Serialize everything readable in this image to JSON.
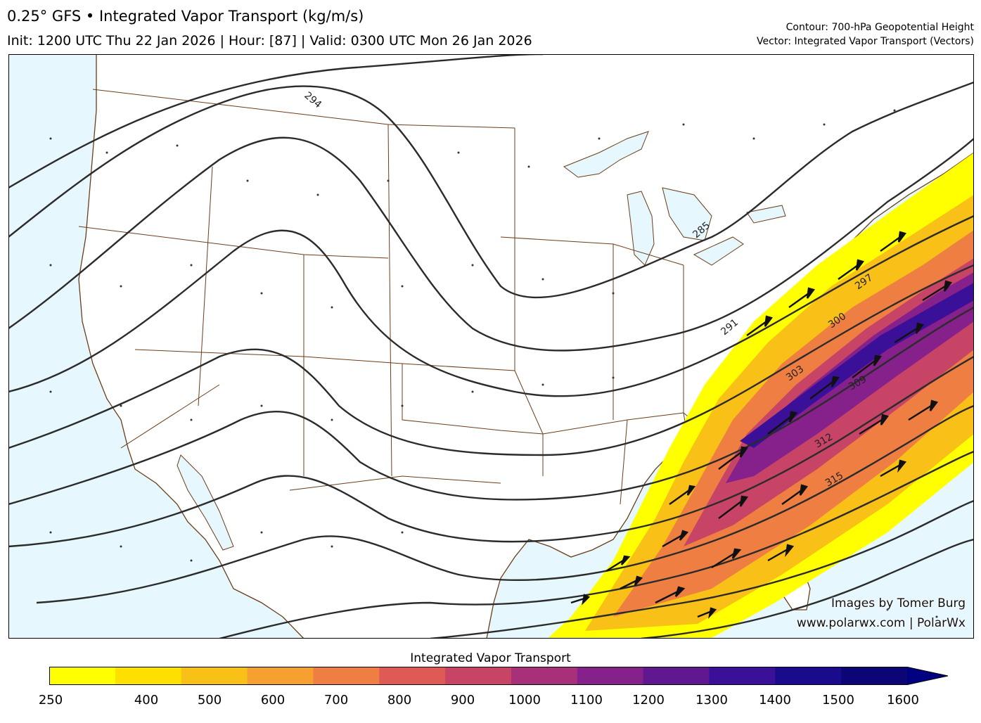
{
  "header": {
    "title": "0.25° GFS • Integrated Vapor Transport (kg/m/s)",
    "subtitle": "Init: 1200 UTC Thu 22 Jan 2026 | Hour: [87] | Valid: 0300 UTC Mon 26 Jan 2026",
    "contour_note": "Contour: 700-hPa Geopotential Height",
    "vector_note": "Vector: Integrated Vapor Transport (Vectors)"
  },
  "credits": {
    "line1": "Images by Tomer Burg",
    "line2": "www.polarwx.com | PolarWx"
  },
  "colorbar": {
    "title": "Integrated Vapor Transport",
    "ticks": [
      "250",
      "400",
      "500",
      "600",
      "700",
      "800",
      "900",
      "1000",
      "1100",
      "1200",
      "1300",
      "1400",
      "1500",
      "1600"
    ],
    "colors": [
      "#ffff00",
      "#fde000",
      "#f9c018",
      "#f5a030",
      "#ee7e42",
      "#e05a55",
      "#c84466",
      "#a8307a",
      "#86208a",
      "#601890",
      "#3a1098",
      "#1a0a8c",
      "#0b0575"
    ]
  },
  "map": {
    "contour_labels": [
      "294",
      "285",
      "291",
      "297",
      "300",
      "303",
      "309",
      "312",
      "315"
    ],
    "colors": {
      "ocean": "#e6f7fd",
      "land": "#ffffff",
      "borders": "#6b3d1a",
      "contours": "#2b2b2b"
    }
  }
}
